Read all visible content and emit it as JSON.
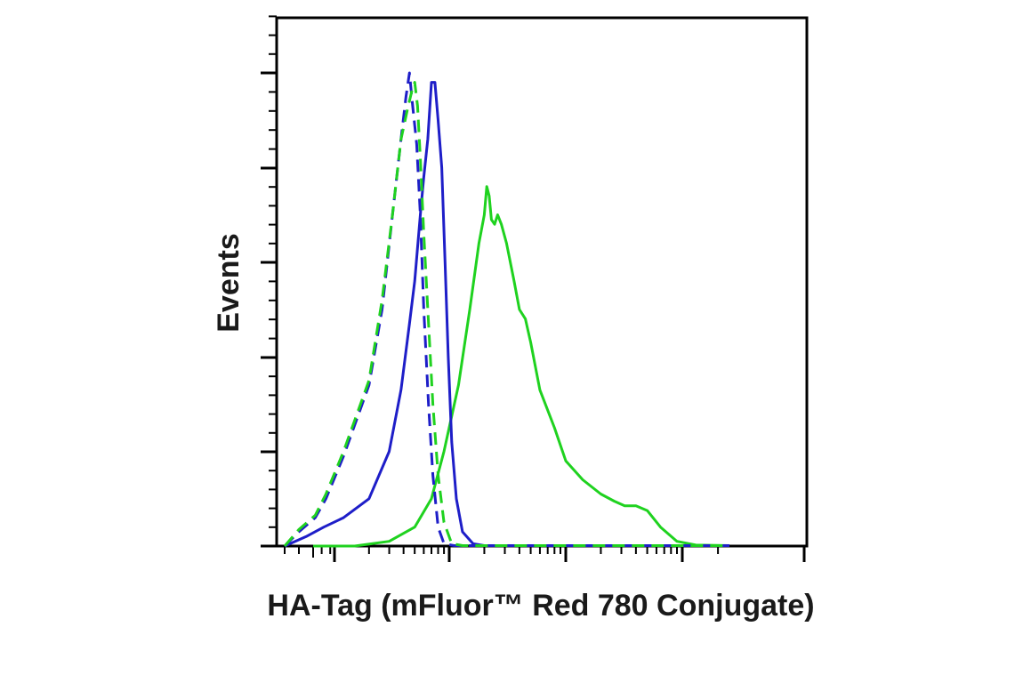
{
  "chart_data": {
    "type": "line",
    "xlabel": "HA-Tag (mFluor™ Red 780 Conjugate)",
    "ylabel": "Events",
    "x_scale": "log",
    "x_tick_labels": "none",
    "y_tick_labels": "none",
    "grid": false,
    "legend": "none",
    "series": [
      {
        "color": "#1fd21f",
        "dash": "solid",
        "points": [
          [
            0,
            0
          ],
          [
            150,
            0
          ],
          [
            300,
            0.01
          ],
          [
            500,
            0.04
          ],
          [
            700,
            0.1
          ],
          [
            900,
            0.2
          ],
          [
            1200,
            0.34
          ],
          [
            1500,
            0.5
          ],
          [
            1800,
            0.64
          ],
          [
            2000,
            0.7
          ],
          [
            2100,
            0.76
          ],
          [
            2200,
            0.74
          ],
          [
            2300,
            0.69
          ],
          [
            2450,
            0.68
          ],
          [
            2600,
            0.7
          ],
          [
            2800,
            0.68
          ],
          [
            3100,
            0.64
          ],
          [
            3600,
            0.56
          ],
          [
            4000,
            0.5
          ],
          [
            4500,
            0.48
          ],
          [
            5000,
            0.43
          ],
          [
            6000,
            0.33
          ],
          [
            8000,
            0.25
          ],
          [
            10000,
            0.18
          ],
          [
            14000,
            0.14
          ],
          [
            20000,
            0.11
          ],
          [
            26000,
            0.095
          ],
          [
            32000,
            0.085
          ],
          [
            40000,
            0.085
          ],
          [
            50000,
            0.075
          ],
          [
            65000,
            0.04
          ],
          [
            90000,
            0.01
          ],
          [
            130000,
            0.002
          ],
          [
            250000,
            0.001
          ]
        ]
      },
      {
        "color": "#1e1ec8",
        "dash": "solid",
        "points": [
          [
            -80,
            0
          ],
          [
            -20,
            0.02
          ],
          [
            50,
            0.04
          ],
          [
            120,
            0.06
          ],
          [
            200,
            0.1
          ],
          [
            300,
            0.2
          ],
          [
            380,
            0.33
          ],
          [
            450,
            0.47
          ],
          [
            500,
            0.56
          ],
          [
            560,
            0.7
          ],
          [
            600,
            0.78
          ],
          [
            650,
            0.86
          ],
          [
            700,
            0.98
          ],
          [
            750,
            0.98
          ],
          [
            800,
            0.9
          ],
          [
            860,
            0.8
          ],
          [
            920,
            0.6
          ],
          [
            980,
            0.4
          ],
          [
            1050,
            0.22
          ],
          [
            1150,
            0.1
          ],
          [
            1300,
            0.03
          ],
          [
            1600,
            0.005
          ],
          [
            2000,
            0.001
          ],
          [
            250000,
            0.001
          ]
        ]
      },
      {
        "color": "#1e1ec8",
        "dash": "dashed",
        "points": [
          [
            -80,
            0
          ],
          [
            -40,
            0.03
          ],
          [
            10,
            0.06
          ],
          [
            60,
            0.1
          ],
          [
            120,
            0.19
          ],
          [
            200,
            0.34
          ],
          [
            260,
            0.5
          ],
          [
            320,
            0.7
          ],
          [
            380,
            0.86
          ],
          [
            420,
            0.95
          ],
          [
            450,
            1.0
          ],
          [
            480,
            0.93
          ],
          [
            520,
            0.85
          ],
          [
            560,
            0.7
          ],
          [
            600,
            0.5
          ],
          [
            660,
            0.3
          ],
          [
            720,
            0.15
          ],
          [
            800,
            0.04
          ],
          [
            900,
            0.005
          ],
          [
            1100,
            0.001
          ],
          [
            250000,
            0.001
          ]
        ]
      },
      {
        "color": "#1fd21f",
        "dash": "dashed",
        "points": [
          [
            -80,
            0
          ],
          [
            -40,
            0.035
          ],
          [
            10,
            0.065
          ],
          [
            60,
            0.11
          ],
          [
            120,
            0.2
          ],
          [
            200,
            0.35
          ],
          [
            260,
            0.52
          ],
          [
            320,
            0.7
          ],
          [
            380,
            0.86
          ],
          [
            430,
            0.92
          ],
          [
            470,
            0.96
          ],
          [
            500,
            0.98
          ],
          [
            530,
            0.93
          ],
          [
            560,
            0.82
          ],
          [
            600,
            0.66
          ],
          [
            650,
            0.5
          ],
          [
            720,
            0.3
          ],
          [
            800,
            0.15
          ],
          [
            900,
            0.05
          ],
          [
            1050,
            0.005
          ],
          [
            1300,
            0.001
          ],
          [
            250000,
            0.001
          ]
        ]
      }
    ]
  }
}
